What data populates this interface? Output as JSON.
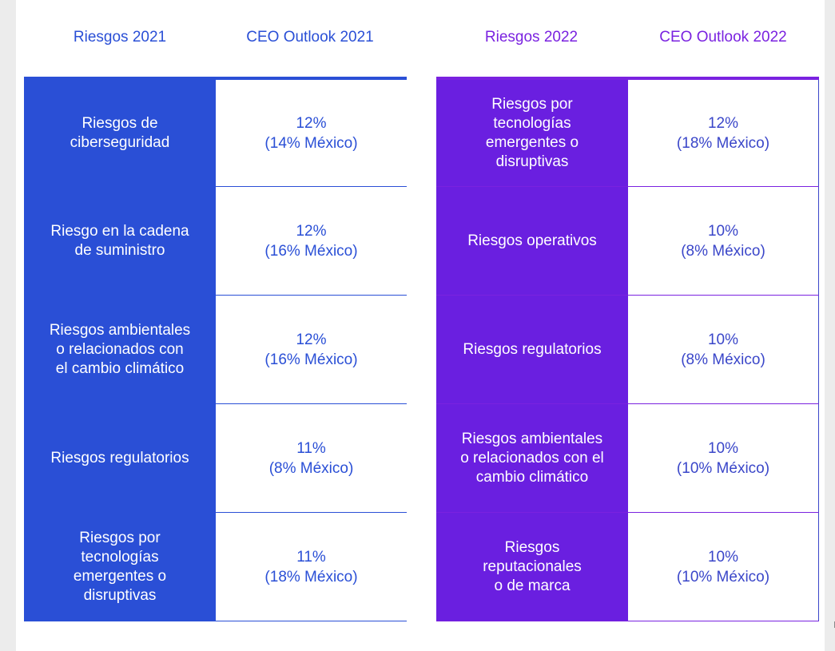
{
  "headers": {
    "risks_2021": "Riesgos 2021",
    "outlook_2021": "CEO Outlook 2021",
    "risks_2022": "Riesgos 2022",
    "outlook_2022": "CEO Outlook 2022"
  },
  "colors": {
    "blue": "#2a4fd6",
    "purple": "#6a1fe0"
  },
  "table_2021": [
    {
      "risk": "Riesgos de\nciberseguridad",
      "pct": "12%",
      "mexico": "(14% México)"
    },
    {
      "risk": "Riesgo en la cadena\nde suministro",
      "pct": "12%",
      "mexico": "(16% México)"
    },
    {
      "risk": "Riesgos ambientales\no relacionados con\nel cambio climático",
      "pct": "12%",
      "mexico": "(16% México)"
    },
    {
      "risk": "Riesgos regulatorios",
      "pct": "11%",
      "mexico": "(8% México)"
    },
    {
      "risk": "Riesgos por\ntecnologías\nemergentes o\ndisruptivas",
      "pct": "11%",
      "mexico": "(18% México)"
    }
  ],
  "table_2022": [
    {
      "risk": "Riesgos por\ntecnologías\nemergentes o\ndisruptivas",
      "pct": "12%",
      "mexico": "(18% México)"
    },
    {
      "risk": "Riesgos operativos",
      "pct": "10%",
      "mexico": "(8% México)"
    },
    {
      "risk": "Riesgos regulatorios",
      "pct": "10%",
      "mexico": "(8% México)"
    },
    {
      "risk": "Riesgos ambientales\no relacionados con el\ncambio climático",
      "pct": "10%",
      "mexico": "(10% México)"
    },
    {
      "risk": "Riesgos\nreputacionales\no de marca",
      "pct": "10%",
      "mexico": "(10% México)"
    }
  ]
}
